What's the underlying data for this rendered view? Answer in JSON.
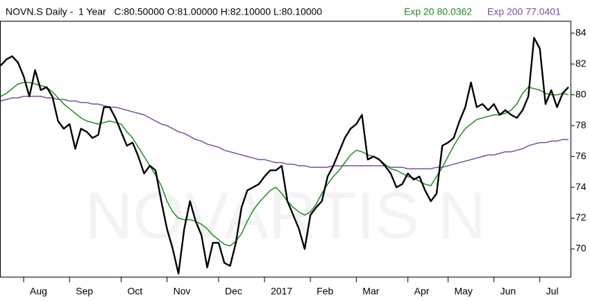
{
  "chart_data": {
    "type": "line",
    "title": "NOVN.S Daily -  1 Year   C:80.50000 O:81.00000 H:82.10000 L:80.10000",
    "watermark": "NOVARTIS N",
    "categories": [
      null,
      null,
      null,
      null,
      "Aug",
      null,
      null,
      null,
      null,
      null,
      null,
      null,
      "Sep",
      null,
      null,
      null,
      null,
      null,
      null,
      null,
      null,
      "Oct",
      null,
      null,
      null,
      null,
      null,
      null,
      null,
      "Nov",
      null,
      null,
      null,
      null,
      null,
      null,
      null,
      null,
      "Dec",
      null,
      null,
      null,
      null,
      null,
      null,
      null,
      "2017",
      null,
      null,
      null,
      null,
      null,
      null,
      null,
      "Feb",
      null,
      null,
      null,
      null,
      null,
      null,
      null,
      "Mar",
      null,
      null,
      null,
      null,
      null,
      null,
      null,
      null,
      "Apr",
      null,
      null,
      null,
      null,
      null,
      null,
      "May",
      null,
      null,
      null,
      null,
      null,
      null,
      null,
      "Jun",
      null,
      null,
      null,
      null,
      null,
      null,
      null,
      "Jul",
      null,
      null,
      null,
      null,
      null
    ],
    "series": [
      {
        "color": "#000000",
        "values": [
          81.9,
          82.3,
          82.5,
          82.1,
          81.2,
          79.9,
          81.6,
          80.3,
          80.5,
          79.9,
          78.3,
          77.8,
          78.1,
          76.5,
          77.8,
          77.6,
          77.2,
          77.4,
          79.2,
          79.2,
          78.5,
          77.6,
          76.7,
          76.9,
          76.0,
          74.9,
          75.4,
          75.1,
          73.1,
          71.3,
          70.0,
          68.4,
          71.3,
          73.1,
          71.8,
          70.9,
          68.8,
          70.4,
          70.4,
          69.1,
          68.9,
          70.4,
          72.7,
          73.8,
          74.0,
          74.2,
          74.7,
          75.1,
          75.1,
          75.4,
          73.1,
          72.2,
          71.3,
          70.0,
          72.2,
          72.7,
          73.1,
          74.7,
          75.4,
          76.3,
          77.2,
          77.8,
          78.1,
          78.7,
          75.8,
          76.0,
          75.8,
          75.4,
          74.9,
          74.0,
          74.2,
          74.9,
          74.5,
          74.7,
          73.8,
          73.1,
          73.6,
          76.7,
          76.9,
          77.2,
          78.3,
          79.2,
          80.8,
          79.2,
          79.4,
          79.0,
          79.4,
          78.7,
          79.0,
          78.7,
          78.5,
          79.0,
          79.9,
          83.7,
          83.0,
          79.4,
          80.3,
          79.2,
          80.1,
          80.5
        ]
      },
      {
        "name": "Exp 20 80.0362",
        "color": "#1f8a24",
        "values": [
          79.9,
          80.1,
          80.4,
          80.7,
          80.8,
          80.8,
          80.7,
          80.6,
          80.5,
          80.2,
          79.8,
          79.4,
          79.1,
          78.8,
          78.5,
          78.3,
          78.2,
          78.1,
          78.2,
          78.3,
          78.2,
          78.1,
          77.6,
          77.2,
          76.6,
          76.0,
          75.4,
          74.8,
          74.1,
          73.1,
          72.4,
          72.0,
          71.9,
          71.9,
          71.8,
          71.6,
          71.3,
          70.9,
          70.6,
          70.3,
          70.2,
          70.5,
          71.0,
          71.8,
          72.5,
          73.0,
          73.4,
          73.8,
          74.0,
          73.6,
          73.1,
          72.7,
          72.4,
          72.2,
          72.4,
          72.9,
          73.6,
          74.2,
          74.7,
          75.1,
          75.6,
          76.1,
          76.4,
          76.3,
          76.1,
          76.0,
          75.8,
          75.5,
          75.2,
          75.1,
          74.9,
          74.7,
          74.6,
          74.4,
          74.2,
          74.1,
          74.7,
          75.3,
          76.0,
          76.7,
          77.3,
          77.8,
          78.1,
          78.4,
          78.5,
          78.6,
          78.7,
          78.7,
          78.8,
          79.0,
          79.4,
          80.1,
          80.5,
          80.4,
          80.3,
          80.1,
          80.0,
          80.0,
          80.1,
          80.0
        ]
      },
      {
        "name": "Exp 200 77.0401",
        "color": "#7a4f9c",
        "values": [
          79.6,
          79.7,
          79.8,
          79.8,
          79.9,
          79.9,
          79.9,
          79.9,
          79.8,
          79.8,
          79.7,
          79.7,
          79.6,
          79.6,
          79.5,
          79.5,
          79.4,
          79.4,
          79.3,
          79.2,
          79.2,
          79.1,
          79.0,
          78.9,
          78.8,
          78.7,
          78.5,
          78.3,
          78.1,
          78.0,
          77.8,
          77.6,
          77.5,
          77.3,
          77.1,
          77.0,
          76.8,
          76.7,
          76.6,
          76.4,
          76.3,
          76.2,
          76.1,
          76.0,
          75.9,
          75.8,
          75.8,
          75.7,
          75.6,
          75.6,
          75.5,
          75.5,
          75.4,
          75.4,
          75.3,
          75.3,
          75.3,
          75.3,
          75.4,
          75.4,
          75.4,
          75.4,
          75.4,
          75.4,
          75.4,
          75.4,
          75.4,
          75.4,
          75.3,
          75.3,
          75.3,
          75.2,
          75.2,
          75.2,
          75.2,
          75.2,
          75.3,
          75.3,
          75.4,
          75.5,
          75.6,
          75.7,
          75.8,
          75.9,
          76.0,
          76.1,
          76.1,
          76.2,
          76.3,
          76.3,
          76.4,
          76.5,
          76.7,
          76.8,
          76.9,
          76.9,
          77.0,
          77.0,
          77.1,
          77.1
        ]
      }
    ],
    "ylim": [
      68.2,
      84.8
    ],
    "yticks": [
      70,
      72,
      74,
      76,
      78,
      80,
      82,
      84
    ]
  }
}
